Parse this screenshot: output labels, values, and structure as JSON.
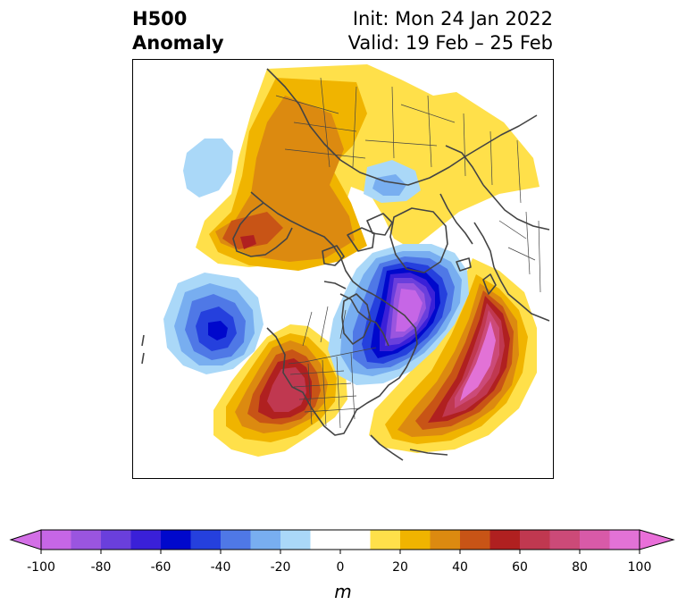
{
  "title": {
    "line1": "H500",
    "line2": "Anomaly",
    "init": "Init: Mon 24 Jan 2022",
    "valid": "Valid: 19 Feb – 25 Feb"
  },
  "colorbar": {
    "unit": "m",
    "tick_labels": [
      "-100",
      "-80",
      "-60",
      "-40",
      "-20",
      "0",
      "20",
      "40",
      "60",
      "80",
      "100"
    ],
    "levels": [
      -100,
      -90,
      -80,
      -70,
      -60,
      -50,
      -40,
      -30,
      -20,
      -10,
      10,
      20,
      30,
      40,
      50,
      60,
      70,
      80,
      90,
      100
    ],
    "colors": [
      "#c666e6",
      "#9a55df",
      "#6a3fdc",
      "#3a20d8",
      "#0008cc",
      "#2540dd",
      "#4f78e6",
      "#78aef0",
      "#aad8f8",
      "#ffffff",
      "#ffe04a",
      "#f0b400",
      "#dc8a10",
      "#c85416",
      "#b02020",
      "#c03850",
      "#cc4a78",
      "#d85aa8",
      "#e272d6"
    ],
    "under_color": "#d36fe6",
    "over_color": "#e96fd9"
  },
  "map": {
    "features": [
      "geopotential-height-500hPa-anomaly",
      "coastlines",
      "country-borders",
      "state-borders"
    ],
    "anomaly_centers": [
      {
        "region": "eastern-canada-hudson-bay",
        "sign": "negative",
        "level": "-100"
      },
      {
        "region": "north-atlantic",
        "sign": "positive",
        "level": "100"
      },
      {
        "region": "western-united-states",
        "sign": "positive",
        "level": "60"
      },
      {
        "region": "north-pacific",
        "sign": "negative",
        "level": "-60"
      },
      {
        "region": "siberia",
        "sign": "positive",
        "level": "40"
      },
      {
        "region": "arctic",
        "sign": "negative",
        "level": "-20"
      }
    ]
  }
}
